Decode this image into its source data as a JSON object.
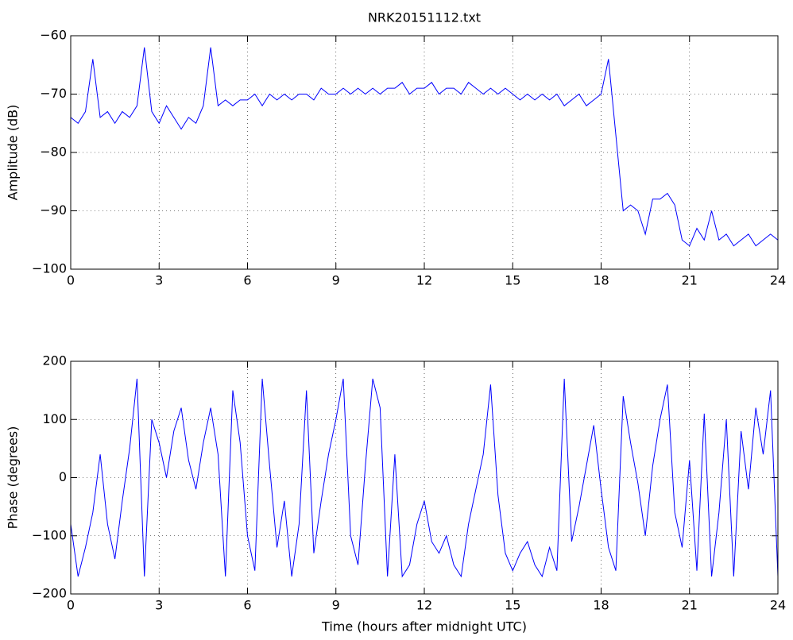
{
  "chart_data": [
    {
      "type": "line",
      "title": "NRK20151112.txt",
      "y_label": "Amplitude (dB)",
      "x": [
        0,
        0.25,
        0.5,
        0.75,
        1,
        1.25,
        1.5,
        1.75,
        2,
        2.25,
        2.5,
        2.75,
        3,
        3.25,
        3.5,
        3.75,
        4,
        4.25,
        4.5,
        4.75,
        5,
        5.25,
        5.5,
        5.75,
        6,
        6.25,
        6.5,
        6.75,
        7,
        7.25,
        7.5,
        7.75,
        8,
        8.25,
        8.5,
        8.75,
        9,
        9.25,
        9.5,
        9.75,
        10,
        10.25,
        10.5,
        10.75,
        11,
        11.25,
        11.5,
        11.75,
        12,
        12.25,
        12.5,
        12.75,
        13,
        13.25,
        13.5,
        13.75,
        14,
        14.25,
        14.5,
        14.75,
        15,
        15.25,
        15.5,
        15.75,
        16,
        16.25,
        16.5,
        16.75,
        17,
        17.25,
        17.5,
        17.75,
        18,
        18.25,
        18.5,
        18.75,
        19,
        19.25,
        19.5,
        19.75,
        20,
        20.25,
        20.5,
        20.75,
        21,
        21.25,
        21.5,
        21.75,
        22,
        22.25,
        22.5,
        22.75,
        23,
        23.25,
        23.5,
        23.75,
        24
      ],
      "series": [
        {
          "color": "#0000ff",
          "values": [
            -74,
            -75,
            -73,
            -64,
            -74,
            -73,
            -75,
            -73,
            -74,
            -72,
            -62,
            -73,
            -75,
            -72,
            -74,
            -76,
            -74,
            -75,
            -72,
            -62,
            -72,
            -71,
            -72,
            -71,
            -71,
            -70,
            -72,
            -70,
            -71,
            -70,
            -71,
            -70,
            -70,
            -71,
            -69,
            -70,
            -70,
            -69,
            -70,
            -69,
            -70,
            -69,
            -70,
            -69,
            -69,
            -68,
            -70,
            -69,
            -69,
            -68,
            -70,
            -69,
            -69,
            -70,
            -68,
            -69,
            -70,
            -69,
            -70,
            -69,
            -70,
            -71,
            -70,
            -71,
            -70,
            -71,
            -70,
            -72,
            -71,
            -70,
            -72,
            -71,
            -70,
            -64,
            -77,
            -90,
            -89,
            -90,
            -94,
            -88,
            -88,
            -87,
            -89,
            -95,
            -96,
            -93,
            -95,
            -90,
            -95,
            -94,
            -96,
            -95,
            -94,
            -96,
            -95,
            -94,
            -95
          ]
        }
      ],
      "xlim": [
        0,
        24
      ],
      "xticks": [
        0,
        3,
        6,
        9,
        12,
        15,
        18,
        21,
        24
      ],
      "ylim": [
        -100,
        -60
      ],
      "yticks": [
        {
          "value": -100,
          "label": "−100"
        },
        {
          "value": -90,
          "label": "−90"
        },
        {
          "value": -80,
          "label": "−80"
        },
        {
          "value": -70,
          "label": "−70"
        },
        {
          "value": -60,
          "label": "−60"
        }
      ],
      "grid": true
    },
    {
      "type": "line",
      "x_label": "Time (hours after midnight UTC)",
      "y_label": "Phase (degrees)",
      "x": [
        0,
        0.25,
        0.5,
        0.75,
        1,
        1.25,
        1.5,
        1.75,
        2,
        2.25,
        2.5,
        2.75,
        3,
        3.25,
        3.5,
        3.75,
        4,
        4.25,
        4.5,
        4.75,
        5,
        5.25,
        5.5,
        5.75,
        6,
        6.25,
        6.5,
        6.75,
        7,
        7.25,
        7.5,
        7.75,
        8,
        8.25,
        8.5,
        8.75,
        9,
        9.25,
        9.5,
        9.75,
        10,
        10.25,
        10.5,
        10.75,
        11,
        11.25,
        11.5,
        11.75,
        12,
        12.25,
        12.5,
        12.75,
        13,
        13.25,
        13.5,
        13.75,
        14,
        14.25,
        14.5,
        14.75,
        15,
        15.25,
        15.5,
        15.75,
        16,
        16.25,
        16.5,
        16.75,
        17,
        17.25,
        17.5,
        17.75,
        18,
        18.25,
        18.5,
        18.75,
        19,
        19.25,
        19.5,
        19.75,
        20,
        20.25,
        20.5,
        20.75,
        21,
        21.25,
        21.5,
        21.75,
        22,
        22.25,
        22.5,
        22.75,
        23,
        23.25,
        23.5,
        23.75,
        24
      ],
      "series": [
        {
          "color": "#0000ff",
          "values": [
            -80,
            -170,
            -120,
            -60,
            40,
            -80,
            -140,
            -40,
            50,
            170,
            -170,
            100,
            60,
            0,
            80,
            120,
            30,
            -20,
            60,
            120,
            40,
            -170,
            150,
            60,
            -100,
            -160,
            170,
            20,
            -120,
            -40,
            -170,
            -80,
            150,
            -130,
            -40,
            40,
            100,
            170,
            -100,
            -150,
            20,
            170,
            120,
            -170,
            40,
            -170,
            -150,
            -80,
            -40,
            -110,
            -130,
            -100,
            -150,
            -170,
            -80,
            -20,
            40,
            160,
            -30,
            -130,
            -160,
            -130,
            -110,
            -150,
            -170,
            -120,
            -160,
            170,
            -110,
            -50,
            20,
            90,
            -20,
            -120,
            -160,
            140,
            60,
            -10,
            -100,
            20,
            100,
            160,
            -60,
            -120,
            30,
            -160,
            110,
            -170,
            -60,
            100,
            -170,
            80,
            -20,
            120,
            40,
            150,
            -170
          ]
        }
      ],
      "xlim": [
        0,
        24
      ],
      "xticks": [
        0,
        3,
        6,
        9,
        12,
        15,
        18,
        21,
        24
      ],
      "ylim": [
        -200,
        200
      ],
      "yticks": [
        {
          "value": -200,
          "label": "−200"
        },
        {
          "value": -100,
          "label": "−100"
        },
        0,
        100,
        200
      ],
      "grid": true
    }
  ]
}
